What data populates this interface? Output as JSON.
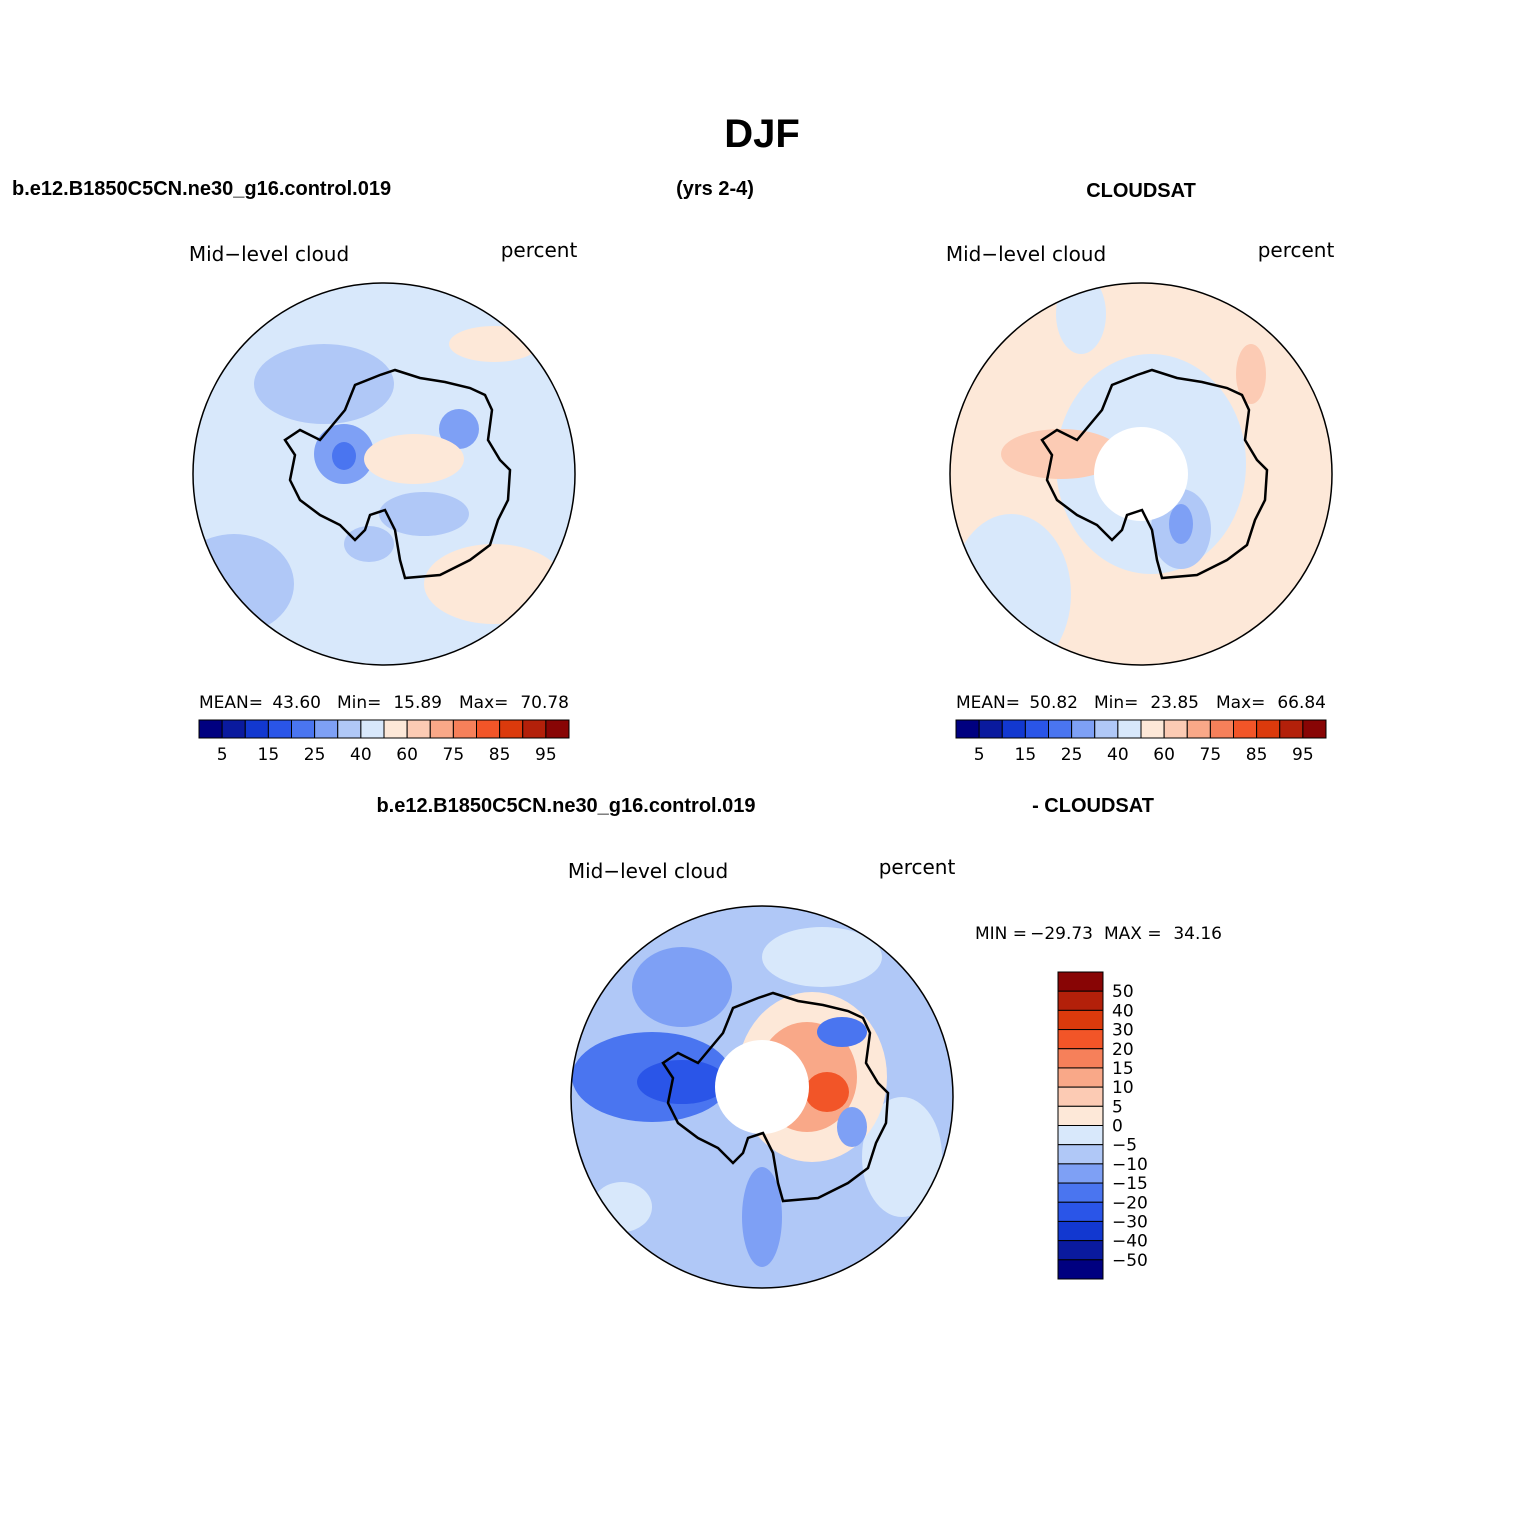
{
  "title": "DJF",
  "header": {
    "left": "b.e12.B1850C5CN.ne30_g16.control.019",
    "center": "(yrs 2-4)",
    "right": "CLOUDSAT"
  },
  "panels": [
    {
      "left_label": "Mid−level cloud",
      "right_label": "percent",
      "stats": [
        {
          "label": "MEAN=",
          "value": "43.60"
        },
        {
          "label": "Min=",
          "value": "15.89"
        },
        {
          "label": "Max=",
          "value": "70.78"
        }
      ],
      "colorbar": {
        "labels": [
          "5",
          "15",
          "25",
          "40",
          "60",
          "75",
          "85",
          "95"
        ],
        "colors": [
          "#000080",
          "#0a1a9e",
          "#1238d0",
          "#2a55e8",
          "#4a75f0",
          "#7ea0f5",
          "#b0c8f7",
          "#d8e8fb",
          "#fde8d8",
          "#fccbb4",
          "#f9a888",
          "#f6805a",
          "#f25528",
          "#db3a0c",
          "#b3200a",
          "#880505"
        ]
      }
    },
    {
      "left_label": "Mid−level cloud",
      "right_label": "percent",
      "stats": [
        {
          "label": "MEAN=",
          "value": "50.82"
        },
        {
          "label": "Min=",
          "value": "23.85"
        },
        {
          "label": "Max=",
          "value": "66.84"
        }
      ],
      "colorbar": {
        "labels": [
          "5",
          "15",
          "25",
          "40",
          "60",
          "75",
          "85",
          "95"
        ],
        "colors": [
          "#000080",
          "#0a1a9e",
          "#1238d0",
          "#2a55e8",
          "#4a75f0",
          "#7ea0f5",
          "#b0c8f7",
          "#d8e8fb",
          "#fde8d8",
          "#fccbb4",
          "#f9a888",
          "#f6805a",
          "#f25528",
          "#db3a0c",
          "#b3200a",
          "#880505"
        ]
      }
    }
  ],
  "difference": {
    "header": {
      "left": "b.e12.B1850C5CN.ne30_g16.control.019",
      "right": "- CLOUDSAT"
    },
    "left_label": "Mid−level cloud",
    "right_label": "percent",
    "stats": [
      {
        "label": "MIN =",
        "value": "−29.73"
      },
      {
        "label": "MAX =",
        "value": "34.16"
      }
    ],
    "colorbar": {
      "labels": [
        "50",
        "40",
        "30",
        "20",
        "15",
        "10",
        "5",
        "0",
        "−5",
        "−10",
        "−15",
        "−20",
        "−30",
        "−40",
        "−50"
      ],
      "colors": [
        "#880505",
        "#b3200a",
        "#db3a0c",
        "#f25528",
        "#f6805a",
        "#f9a888",
        "#fccbb4",
        "#fde8d8",
        "#d8e8fb",
        "#b0c8f7",
        "#7ea0f5",
        "#4a75f0",
        "#2a55e8",
        "#1238d0",
        "#0a1a9e",
        "#000080"
      ]
    }
  }
}
